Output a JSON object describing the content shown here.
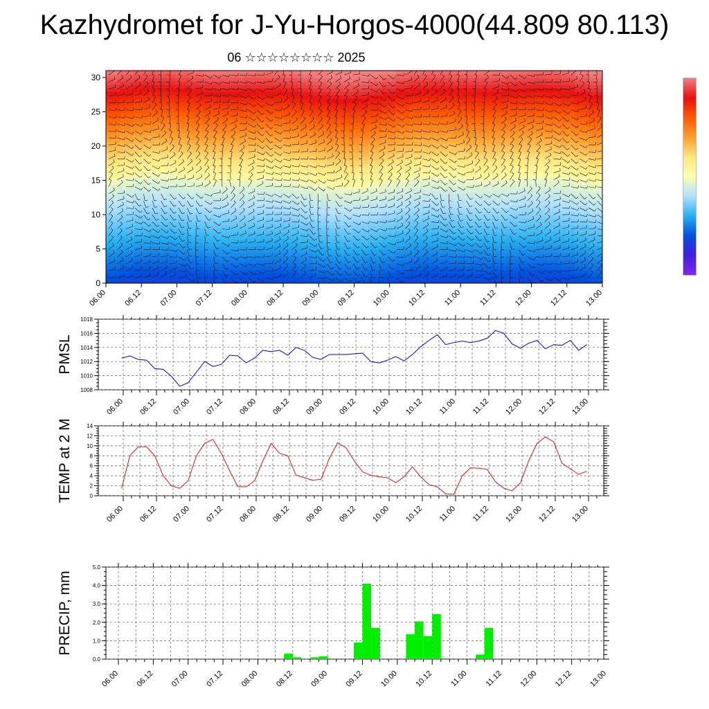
{
  "header": {
    "title": "Kazhydromet for J-Yu-Horgos-4000(44.809 80.113)",
    "subtitle": "06 ☆☆☆☆☆☆☆☆ 2025"
  },
  "time_labels": [
    "06.00",
    "06.12",
    "07.00",
    "07.12",
    "08.00",
    "08.12",
    "09.00",
    "09.12",
    "10.00",
    "10.12",
    "11.00",
    "11.12",
    "12.00",
    "12.12",
    "13.00"
  ],
  "colors": {
    "pmsl_line": "#0000cc",
    "temp_line": "#dd1111",
    "precip_bar": "#00ee00",
    "grid": "#555555",
    "colorbar_stops": [
      "#f08080",
      "#e81010",
      "#ff5a00",
      "#ffa030",
      "#ffe680",
      "#ffffb0",
      "#b0e0ff",
      "#28b0f0",
      "#0050dd",
      "#4020e0",
      "#7e28f0"
    ]
  },
  "chart_data": [
    {
      "type": "heatmap",
      "description_fields": "wind-barb cross-section over time vs level",
      "x_categories": [
        "06.00",
        "06.12",
        "07.00",
        "07.12",
        "08.00",
        "08.12",
        "09.00",
        "09.12",
        "10.00",
        "10.12",
        "11.00",
        "11.12",
        "12.00",
        "12.12",
        "13.00"
      ],
      "ylim": [
        0,
        31
      ],
      "yticks": [
        0,
        5,
        10,
        15,
        20,
        25,
        30
      ],
      "xlabel": "",
      "ylabel": ""
    },
    {
      "type": "line",
      "ylabel": "PMSL",
      "ylim": [
        1008,
        1018
      ],
      "yticks": [
        1008,
        1010,
        1012,
        1014,
        1016,
        1018
      ],
      "x_step_hours": 3,
      "x_start": "06.00",
      "series": [
        {
          "values": [
            1012.5,
            1012.8,
            1012.3,
            1012.2,
            1011.0,
            1010.9,
            1009.9,
            1008.5,
            1009.0,
            1010.5,
            1012.0,
            1011.3,
            1011.6,
            1012.9,
            1012.8,
            1011.8,
            1012.5,
            1013.6,
            1013.4,
            1013.6,
            1012.9,
            1014.0,
            1013.6,
            1012.6,
            1012.3,
            1013.0,
            1013.0,
            1013.0,
            1013.1,
            1013.2,
            1012.0,
            1011.8,
            1012.2,
            1012.7,
            1012.1,
            1013.0,
            1014.1,
            1015.0,
            1015.8,
            1014.4,
            1014.7,
            1014.9,
            1014.7,
            1014.9,
            1015.3,
            1016.4,
            1016.0,
            1014.5,
            1013.9,
            1014.6,
            1015.0,
            1013.8,
            1014.4,
            1014.3,
            1015.0,
            1013.6,
            1014.4
          ]
        }
      ]
    },
    {
      "type": "line",
      "ylabel": "TEMP at 2 M",
      "ylim": [
        0,
        14
      ],
      "yticks": [
        0,
        2,
        4,
        6,
        8,
        10,
        12,
        14
      ],
      "x_step_hours": 3,
      "x_start": "06.00",
      "series": [
        {
          "values": [
            1.5,
            8.0,
            9.8,
            9.8,
            8.0,
            4.0,
            2.0,
            1.5,
            3.0,
            8.0,
            10.5,
            11.3,
            8.5,
            5.0,
            1.8,
            1.8,
            3.0,
            7.0,
            10.5,
            8.5,
            8.0,
            4.1,
            3.6,
            3.1,
            3.3,
            7.5,
            10.6,
            9.6,
            7.0,
            4.8,
            4.1,
            3.8,
            3.6,
            2.6,
            3.8,
            5.8,
            3.8,
            2.2,
            1.8,
            0.4,
            0.3,
            4.0,
            5.6,
            5.5,
            5.3,
            2.8,
            1.5,
            1.0,
            2.6,
            7.0,
            10.5,
            11.8,
            10.8,
            6.5,
            5.4,
            4.3,
            4.9
          ]
        }
      ]
    },
    {
      "type": "bar",
      "ylabel": "PRECIP, mm",
      "ylim": [
        0,
        5
      ],
      "yticks": [
        "0.0",
        "1.0",
        "2.0",
        "3.0",
        "4.0",
        "5.0"
      ],
      "x_step_hours": 3,
      "x_start": "06.00",
      "values": [
        0,
        0,
        0,
        0,
        0,
        0,
        0,
        0,
        0,
        0,
        0,
        0,
        0,
        0,
        0,
        0,
        0,
        0,
        0,
        0.3,
        0.1,
        0,
        0.1,
        0.15,
        0,
        0,
        0,
        0.9,
        4.1,
        1.7,
        0,
        0,
        0,
        1.35,
        2.05,
        1.25,
        2.45,
        0.05,
        0,
        0,
        0,
        0.25,
        1.7,
        0,
        0,
        0,
        0,
        0,
        0,
        0,
        0,
        0,
        0,
        0,
        0,
        0
      ]
    }
  ]
}
